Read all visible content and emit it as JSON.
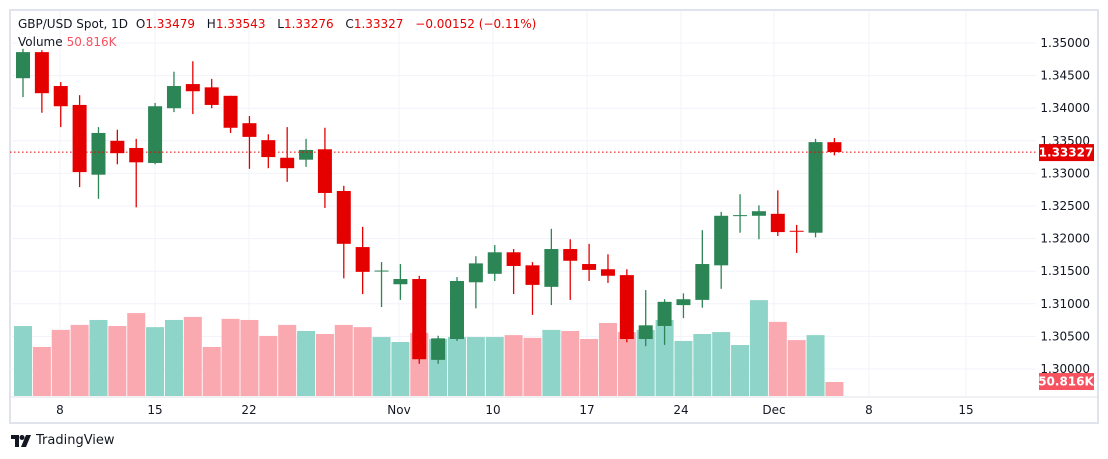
{
  "legend": {
    "symbol": "GBP/USD Spot, 1D",
    "o_label": "O",
    "o": "1.33479",
    "h_label": "H",
    "h": "1.33543",
    "l_label": "L",
    "l": "1.33276",
    "c_label": "C",
    "c": "1.33327",
    "change": "−0.00152 (−0.11%)",
    "volume_label": "Volume",
    "volume_value": "50.816K"
  },
  "brand": "TradingView",
  "colors": {
    "up": "#2c8555",
    "down": "#e50000",
    "vol_up": "#8fd4c8",
    "vol_down": "#faa9b0",
    "price_tag": "#e50000",
    "vol_tag": "#f7525f"
  },
  "chart_data": {
    "type": "candlestick",
    "title": "GBP/USD Spot, 1D",
    "ylim": [
      1.2985,
      1.3515
    ],
    "y_ticks": [
      "1.35000",
      "1.34500",
      "1.34000",
      "1.33500",
      "1.33000",
      "1.32500",
      "1.32000",
      "1.31500",
      "1.31000",
      "1.30500",
      "1.30000"
    ],
    "x_ticks": [
      "8",
      "15",
      "22",
      "Nov",
      "10",
      "17",
      "24",
      "Dec",
      "8",
      "15"
    ],
    "last_price_label": "1.33327",
    "last_volume_label": "50.816K",
    "grid": true,
    "open": [
      1.3446,
      1.3486,
      1.3434,
      1.3405,
      1.3298,
      1.335,
      1.3339,
      1.3316,
      1.34,
      1.3437,
      1.3432,
      1.3419,
      1.3377,
      1.3351,
      1.3324,
      1.3321,
      1.3337,
      1.3273,
      1.3187,
      1.315,
      1.313,
      1.3138,
      1.3014,
      1.3046,
      1.3133,
      1.3146,
      1.3179,
      1.3159,
      1.3126,
      1.3184,
      1.3161,
      1.3153,
      1.3144,
      1.3046,
      1.3066,
      1.3098,
      1.3106,
      1.3159,
      1.3235,
      1.3235,
      1.3238,
      1.3212,
      1.3209,
      1.33479
    ],
    "high": [
      1.3491,
      1.3489,
      1.344,
      1.342,
      1.3371,
      1.3367,
      1.3353,
      1.3408,
      1.3456,
      1.3472,
      1.3445,
      1.3419,
      1.3388,
      1.336,
      1.3371,
      1.3353,
      1.337,
      1.3281,
      1.3218,
      1.3164,
      1.3161,
      1.3143,
      1.3051,
      1.3141,
      1.3173,
      1.319,
      1.3184,
      1.3164,
      1.3215,
      1.3199,
      1.3192,
      1.3176,
      1.3153,
      1.3121,
      1.3107,
      1.3116,
      1.3213,
      1.3241,
      1.3268,
      1.3251,
      1.3274,
      1.3221,
      1.3353,
      1.33543
    ],
    "low": [
      1.3417,
      1.3393,
      1.3371,
      1.3279,
      1.3261,
      1.3314,
      1.3248,
      1.3314,
      1.3394,
      1.3391,
      1.34,
      1.3362,
      1.3307,
      1.3308,
      1.3287,
      1.331,
      1.3247,
      1.3139,
      1.3115,
      1.3095,
      1.3106,
      1.3008,
      1.3008,
      1.3043,
      1.3093,
      1.3135,
      1.3115,
      1.3083,
      1.3098,
      1.3106,
      1.3135,
      1.3132,
      1.3041,
      1.3035,
      1.3037,
      1.3078,
      1.3094,
      1.3123,
      1.3209,
      1.3199,
      1.3204,
      1.3178,
      1.3202,
      1.33276
    ],
    "close": [
      1.3486,
      1.3423,
      1.3403,
      1.3302,
      1.3362,
      1.3331,
      1.3317,
      1.3403,
      1.3434,
      1.3426,
      1.3405,
      1.337,
      1.3356,
      1.3325,
      1.3308,
      1.3336,
      1.327,
      1.3192,
      1.3149,
      1.3151,
      1.3138,
      1.3015,
      1.3047,
      1.3135,
      1.3162,
      1.3179,
      1.3158,
      1.3129,
      1.3184,
      1.3166,
      1.3152,
      1.3143,
      1.3046,
      1.3067,
      1.3103,
      1.3107,
      1.3161,
      1.3235,
      1.3236,
      1.3242,
      1.321,
      1.3211,
      1.3348,
      1.33327
    ],
    "volume_k": [
      254,
      178,
      240,
      258,
      276,
      254,
      301,
      250,
      276,
      287,
      178,
      280,
      276,
      218,
      258,
      236,
      225,
      258,
      250,
      214,
      196,
      229,
      207,
      214,
      214,
      214,
      221,
      211,
      240,
      236,
      207,
      265,
      232,
      240,
      276,
      200,
      225,
      232,
      185,
      348,
      269,
      203,
      221,
      50.816
    ]
  }
}
